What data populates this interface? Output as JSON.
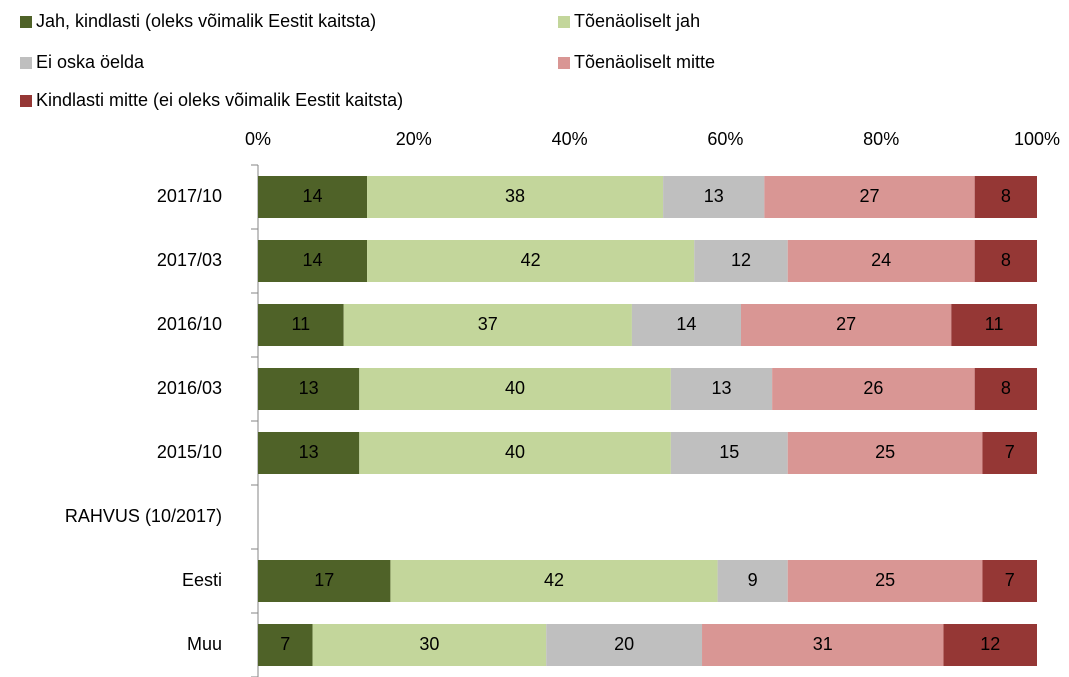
{
  "chart_data": {
    "type": "stacked_barh",
    "categories": [
      "2017/10",
      "2017/03",
      "2016/10",
      "2016/03",
      "2015/10",
      "RAHVUS (10/2017)",
      "Eesti",
      "Muu"
    ],
    "series": [
      {
        "name": "Jah, kindlasti (oleks võimalik Eestit kaitsta)",
        "color": "#4f6228",
        "values": [
          14,
          14,
          11,
          13,
          13,
          null,
          17,
          7
        ]
      },
      {
        "name": "Tõenäoliselt jah",
        "color": "#c3d69b",
        "values": [
          38,
          42,
          37,
          40,
          40,
          null,
          42,
          30
        ]
      },
      {
        "name": "Ei oska öelda",
        "color": "#bfbfbf",
        "values": [
          13,
          12,
          14,
          13,
          15,
          null,
          9,
          20
        ]
      },
      {
        "name": "Tõenäoliselt mitte",
        "color": "#d99694",
        "values": [
          27,
          24,
          27,
          26,
          25,
          null,
          25,
          31
        ]
      },
      {
        "name": "Kindlasti mitte (ei oleks võimalik Eestit kaitsta)",
        "color": "#953735",
        "values": [
          8,
          8,
          11,
          8,
          7,
          null,
          7,
          12
        ]
      }
    ],
    "xlim": [
      0,
      100
    ],
    "xticks": [
      {
        "value": 0,
        "label": "0%"
      },
      {
        "value": 20,
        "label": "20%"
      },
      {
        "value": 40,
        "label": "40%"
      },
      {
        "value": 60,
        "label": "60%"
      },
      {
        "value": 80,
        "label": "80%"
      },
      {
        "value": 100,
        "label": "100%"
      }
    ],
    "grid": false,
    "legend": "top"
  }
}
